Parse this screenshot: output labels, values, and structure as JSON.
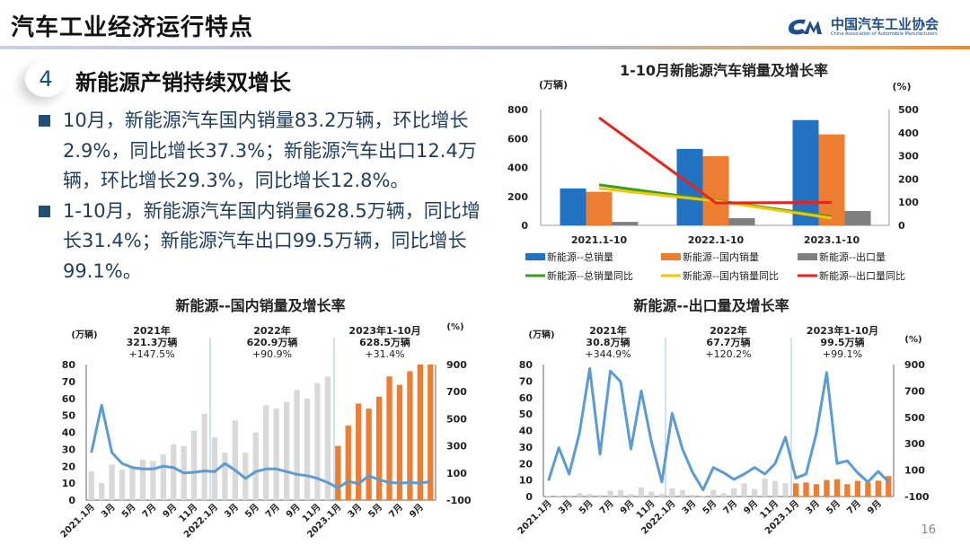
{
  "header": {
    "title": "汽车工业经济运行特点",
    "logo_cn": "中国汽车工业协会",
    "logo_en": "China Association of Automobile Manufacturers"
  },
  "section": {
    "number": "4",
    "title": "新能源产销持续双增长"
  },
  "bullets": [
    "10月，新能源汽车国内销量83.2万辆，环比增长2.9%，同比增长37.3%；新能源汽车出口12.4万辆，环比增长29.3%，同比增长12.8%。",
    "1-10月，新能源汽车国内销量628.5万辆，同比增长31.4%；新能源汽车出口99.5万辆，同比增长99.1%。"
  ],
  "page_number": "16",
  "colors": {
    "blue": "#2272c3",
    "orange": "#ed7d31",
    "gray": "#7f7f7f",
    "green": "#3a9d23",
    "yellow": "#f2c600",
    "red": "#e8231b",
    "light_gray": "#d9d9d9",
    "line_blue": "#5b9bd5"
  },
  "chart_data": [
    {
      "type": "bar",
      "title": "1-10月新能源汽车销量及增长率",
      "ylabel": "(万辆)",
      "y2label": "(%)",
      "ylim": [
        0,
        800
      ],
      "yticks": [
        0,
        200,
        400,
        600,
        800
      ],
      "y2lim": [
        0,
        500
      ],
      "y2ticks": [
        0,
        100,
        200,
        300,
        400,
        500
      ],
      "categories": [
        "2021.1-10",
        "2022.1-10",
        "2023.1-10"
      ],
      "legend": "bottom",
      "series": [
        {
          "name": "新能源--总销量",
          "kind": "bar",
          "axis": "left",
          "color": "#2272c3",
          "values": [
            255,
            528,
            727
          ]
        },
        {
          "name": "新能源--国内销量",
          "kind": "bar",
          "axis": "left",
          "color": "#ed7d31",
          "values": [
            232,
            478,
            628.5
          ]
        },
        {
          "name": "新能源--出口量",
          "kind": "bar",
          "axis": "left",
          "color": "#7f7f7f",
          "values": [
            24,
            50,
            99.5
          ]
        },
        {
          "name": "新能源--总销量同比",
          "kind": "line",
          "axis": "right",
          "color": "#3a9d23",
          "values": [
            175,
            107,
            37
          ]
        },
        {
          "name": "新能源--国内销量同比",
          "kind": "line",
          "axis": "right",
          "color": "#f2c600",
          "values": [
            160,
            105,
            31.4
          ]
        },
        {
          "name": "新能源--出口量同比",
          "kind": "line",
          "axis": "right",
          "color": "#e8231b",
          "values": [
            465,
            97,
            99.1
          ]
        }
      ]
    },
    {
      "type": "bar",
      "title": "新能源--国内销量及增长率",
      "ylabel": "(万辆)",
      "y2label": "(%)",
      "ylim": [
        0,
        80
      ],
      "yticks": [
        0,
        10,
        20,
        30,
        40,
        50,
        60,
        70,
        80
      ],
      "y2lim": [
        -100,
        900
      ],
      "y2ticks": [
        -100,
        100,
        300,
        500,
        700,
        900
      ],
      "xticks": [
        "2021.1月",
        "3月",
        "5月",
        "7月",
        "9月",
        "11月",
        "2022.1月",
        "3月",
        "5月",
        "7月",
        "9月",
        "11月",
        "2023.1月",
        "3月",
        "5月",
        "7月",
        "9月"
      ],
      "annotations": [
        {
          "lines": [
            "2021年",
            "321.3万辆",
            "+147.5%"
          ]
        },
        {
          "lines": [
            "2022年",
            "620.9万辆",
            "+90.9%"
          ]
        },
        {
          "lines": [
            "2023年1-10月",
            "628.5万辆",
            "+31.4%"
          ]
        }
      ],
      "bars": {
        "2021": [
          17,
          10,
          21,
          18,
          19,
          24,
          23,
          27,
          33,
          32,
          41,
          51
        ],
        "2022": [
          37,
          28,
          47,
          28,
          40,
          56,
          54,
          58,
          65,
          60,
          69,
          73
        ],
        "2023": [
          32,
          44,
          57,
          54,
          61,
          73,
          68,
          76,
          80.9,
          83.2
        ]
      },
      "growth_pct": [
        250,
        600,
        250,
        170,
        140,
        130,
        130,
        150,
        140,
        100,
        105,
        115,
        110,
        170,
        120,
        60,
        110,
        130,
        130,
        110,
        90,
        80,
        60,
        30,
        -10,
        40,
        20,
        80,
        50,
        30,
        25,
        30,
        25,
        37.3
      ]
    },
    {
      "type": "bar",
      "title": "新能源--出口量及增长率",
      "ylabel": "(万辆)",
      "y2label": "(%)",
      "ylim": [
        0,
        80
      ],
      "yticks": [
        0,
        10,
        20,
        30,
        40,
        50,
        60,
        70,
        80
      ],
      "y2lim": [
        -100,
        900
      ],
      "y2ticks": [
        -100,
        100,
        300,
        500,
        700,
        900
      ],
      "xticks": [
        "2021.1月",
        "3月",
        "5月",
        "7月",
        "9月",
        "11月",
        "2022.1月",
        "3月",
        "5月",
        "7月",
        "9月",
        "11月",
        "2023.1月",
        "3月",
        "5月",
        "7月",
        "9月"
      ],
      "annotations": [
        {
          "lines": [
            "2021年",
            "30.8万辆",
            "+344.9%"
          ]
        },
        {
          "lines": [
            "2022年",
            "67.7万辆",
            "+120.2%"
          ]
        },
        {
          "lines": [
            "2023年1-10月",
            "99.5万辆",
            "+99.1%"
          ]
        }
      ],
      "bars": {
        "2021": [
          0.5,
          0.5,
          0.7,
          2,
          1.5,
          1,
          3.5,
          4,
          1.5,
          5.5,
          3,
          1.5
        ],
        "2022": [
          5,
          4,
          1,
          0.5,
          4,
          2,
          5,
          8,
          4.5,
          11,
          9.5,
          8
        ],
        "2023": [
          8,
          8.5,
          7.5,
          10,
          10.5,
          7.5,
          9.5,
          8.5,
          9.6,
          12.4
        ]
      },
      "growth_pct": [
        20,
        270,
        70,
        380,
        870,
        220,
        850,
        770,
        260,
        700,
        310,
        10,
        530,
        260,
        80,
        -50,
        120,
        80,
        30,
        70,
        120,
        70,
        150,
        350,
        40,
        70,
        380,
        840,
        150,
        170,
        80,
        10,
        90,
        12.8
      ]
    }
  ]
}
